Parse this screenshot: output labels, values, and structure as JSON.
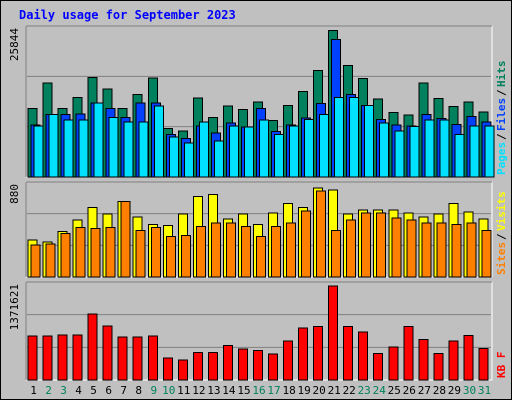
{
  "title": "Daily usage for September 2023",
  "colors": {
    "hits": "#00805c",
    "files": "#0040ff",
    "pages": "#00e0ff",
    "visits": "#ffff00",
    "sites": "#ff8000",
    "kbytes": "#ff0000",
    "weekday_label": "#000000",
    "weekend_label": "#00805c"
  },
  "chart_data": [
    {
      "type": "bar",
      "panel": "requests",
      "max_label": "25844",
      "ylim": [
        0,
        25844
      ],
      "categories": [
        "1",
        "2",
        "3",
        "4",
        "5",
        "6",
        "7",
        "8",
        "9",
        "10",
        "11",
        "12",
        "13",
        "14",
        "15",
        "16",
        "17",
        "18",
        "19",
        "20",
        "21",
        "22",
        "23",
        "24",
        "25",
        "26",
        "27",
        "28",
        "29",
        "30",
        "31"
      ],
      "weekend": [
        false,
        true,
        true,
        false,
        false,
        false,
        false,
        false,
        true,
        true,
        false,
        false,
        false,
        false,
        false,
        true,
        true,
        false,
        false,
        false,
        false,
        false,
        true,
        true,
        false,
        false,
        false,
        false,
        false,
        true,
        true
      ],
      "series": [
        {
          "name": "Hits",
          "key": "hits",
          "values": [
            12000,
            16500,
            12000,
            14000,
            17500,
            15500,
            12000,
            14500,
            17400,
            8500,
            8100,
            13900,
            10500,
            12500,
            11900,
            13200,
            9900,
            12600,
            15000,
            18700,
            25800,
            19600,
            17300,
            13700,
            11300,
            10900,
            16500,
            13800,
            12400,
            13200,
            11400
          ]
        },
        {
          "name": "Files",
          "key": "files",
          "values": [
            9100,
            11000,
            11000,
            11100,
            13000,
            12000,
            10500,
            13000,
            13000,
            7500,
            6800,
            9000,
            7700,
            9500,
            8800,
            12000,
            8000,
            9100,
            10400,
            12900,
            24200,
            14500,
            12600,
            10100,
            9100,
            9000,
            11000,
            10300,
            9200,
            10600,
            9700
          ]
        },
        {
          "name": "Pages",
          "key": "pages",
          "values": [
            9000,
            11000,
            10000,
            10000,
            13000,
            10500,
            9700,
            9700,
            12500,
            7000,
            6000,
            9700,
            6300,
            9000,
            8800,
            10000,
            7500,
            9000,
            10100,
            11000,
            14000,
            14000,
            12600,
            9500,
            8100,
            8900,
            10000,
            10000,
            7500,
            9000,
            9000
          ]
        }
      ],
      "legend": [
        {
          "label": "Hits",
          "key": "hits"
        },
        {
          "label": "Files",
          "key": "files"
        },
        {
          "label": "Pages",
          "key": "pages"
        }
      ]
    },
    {
      "type": "bar",
      "panel": "visitors",
      "max_label": "880",
      "ylim": [
        0,
        880
      ],
      "categories": [
        "1",
        "2",
        "3",
        "4",
        "5",
        "6",
        "7",
        "8",
        "9",
        "10",
        "11",
        "12",
        "13",
        "14",
        "15",
        "16",
        "17",
        "18",
        "19",
        "20",
        "21",
        "22",
        "23",
        "24",
        "25",
        "26",
        "27",
        "28",
        "29",
        "30",
        "31"
      ],
      "series": [
        {
          "name": "Visits",
          "key": "visits",
          "values": [
            360,
            340,
            440,
            550,
            670,
            610,
            730,
            580,
            510,
            500,
            610,
            780,
            800,
            560,
            610,
            510,
            620,
            710,
            670,
            860,
            840,
            610,
            650,
            650,
            650,
            620,
            580,
            610,
            710,
            630,
            560
          ]
        },
        {
          "name": "Sites",
          "key": "sites",
          "values": [
            310,
            320,
            420,
            480,
            470,
            480,
            730,
            450,
            480,
            390,
            400,
            490,
            520,
            520,
            490,
            390,
            490,
            520,
            640,
            830,
            450,
            550,
            620,
            620,
            570,
            550,
            520,
            520,
            510,
            520,
            450
          ]
        }
      ],
      "legend": [
        {
          "label": "Visits",
          "key": "visits"
        },
        {
          "label": "Sites",
          "key": "sites"
        }
      ]
    },
    {
      "type": "bar",
      "panel": "kbytes",
      "max_label": "1371621",
      "ylim": [
        0,
        1371621
      ],
      "categories": [
        "1",
        "2",
        "3",
        "4",
        "5",
        "6",
        "7",
        "8",
        "9",
        "10",
        "11",
        "12",
        "13",
        "14",
        "15",
        "16",
        "17",
        "18",
        "19",
        "20",
        "21",
        "22",
        "23",
        "24",
        "25",
        "26",
        "27",
        "28",
        "29",
        "30",
        "31"
      ],
      "series": [
        {
          "name": "KB F",
          "key": "kbytes",
          "values": [
            640000,
            640000,
            660000,
            660000,
            960000,
            790000,
            630000,
            630000,
            640000,
            320000,
            290000,
            400000,
            400000,
            500000,
            450000,
            430000,
            380000,
            570000,
            760000,
            780000,
            1371621,
            780000,
            700000,
            390000,
            480000,
            780000,
            590000,
            390000,
            570000,
            650000,
            460000
          ]
        }
      ],
      "legend": [
        {
          "label": "KB F",
          "key": "kbytes"
        }
      ]
    }
  ]
}
